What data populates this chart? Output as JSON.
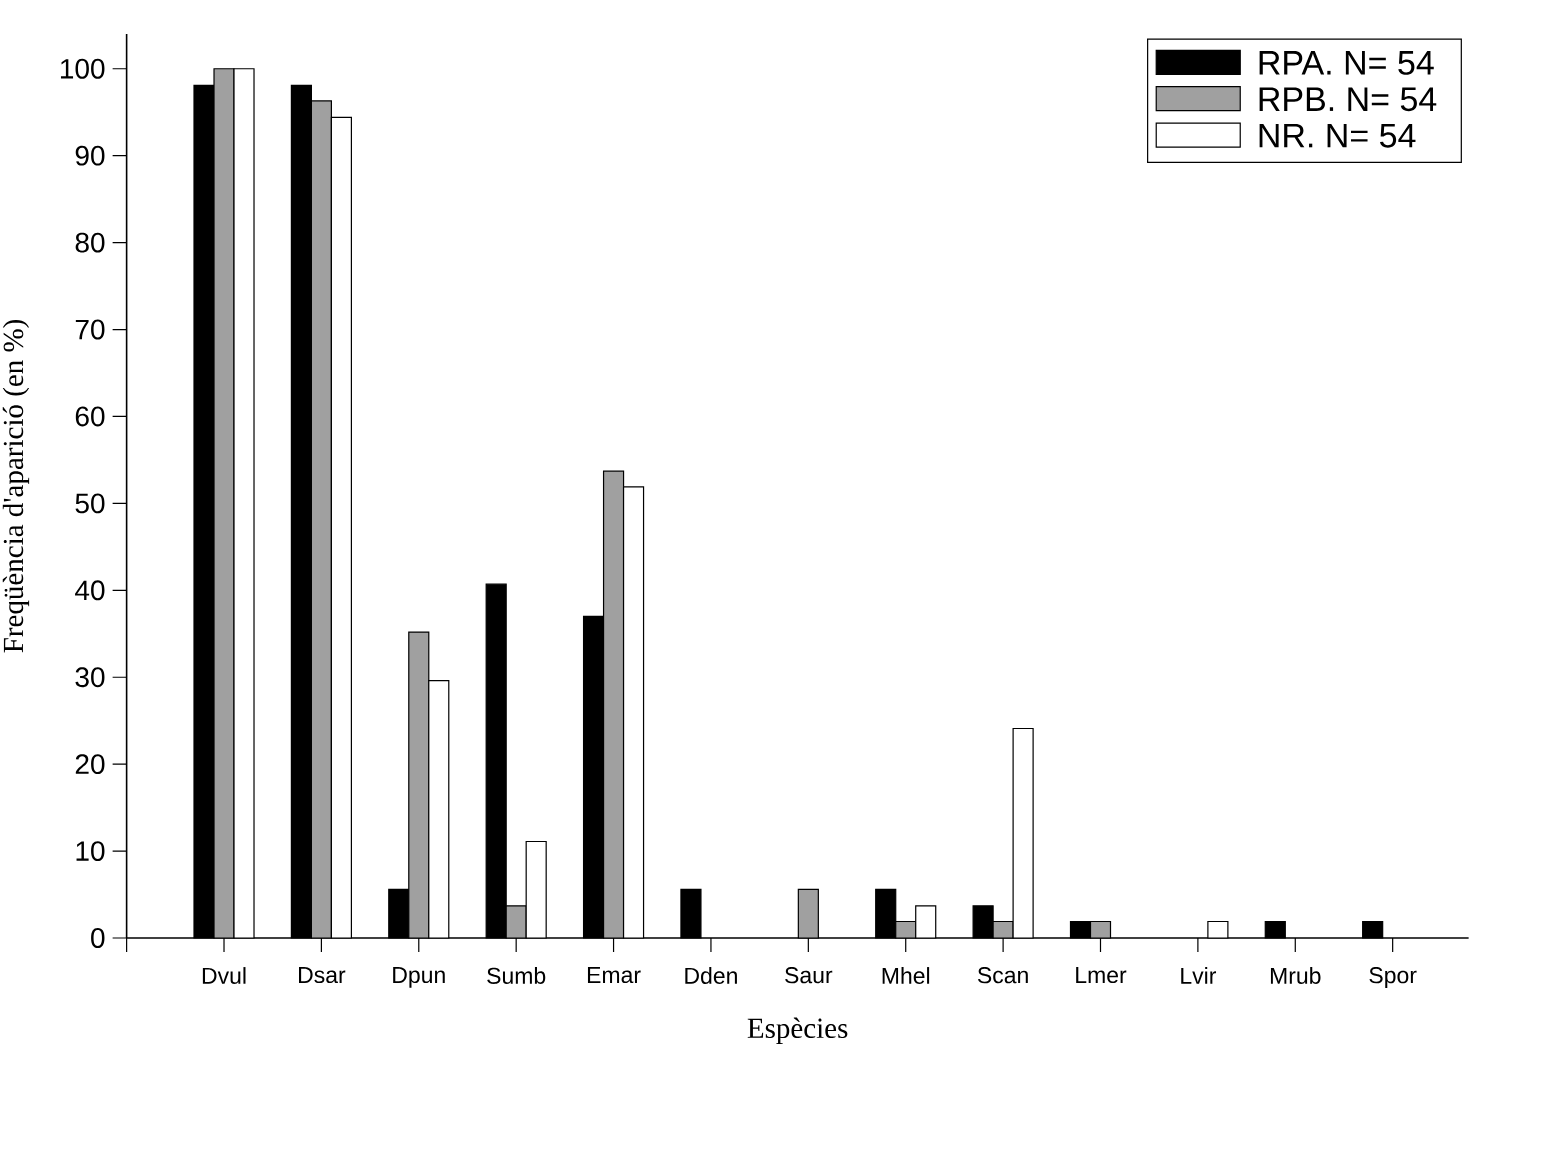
{
  "chart_data": {
    "type": "bar",
    "xlabel": "Espècies",
    "ylabel": "Freqüència d'aparició (en %)",
    "categories": [
      "Dvul",
      "Dsar",
      "Dpun",
      "Sumb",
      "Emar",
      "Dden",
      "Saur",
      "Mhel",
      "Scan",
      "Lmer",
      "Lvir",
      "Mrub",
      "Spor"
    ],
    "series": [
      {
        "name": "RPA. N= 54",
        "color": "#000000",
        "values": [
          98.1,
          98.1,
          5.6,
          40.7,
          37.0,
          5.6,
          0,
          5.6,
          3.7,
          1.9,
          0,
          1.9,
          1.9
        ]
      },
      {
        "name": "RPB. N= 54",
        "color": "#a0a0a0",
        "values": [
          100,
          96.3,
          35.2,
          3.7,
          53.7,
          0,
          5.6,
          1.9,
          1.9,
          1.9,
          0,
          0,
          0
        ]
      },
      {
        "name": "NR. N= 54",
        "color": "#ffffff",
        "values": [
          100,
          94.4,
          29.6,
          11.1,
          51.9,
          0,
          0,
          3.7,
          24.1,
          0,
          1.9,
          0,
          0
        ]
      }
    ],
    "ylim": [
      0,
      104
    ],
    "yticks": [
      0,
      10,
      20,
      30,
      40,
      50,
      60,
      70,
      80,
      90,
      100
    ],
    "grid": false,
    "legend": "top right"
  }
}
